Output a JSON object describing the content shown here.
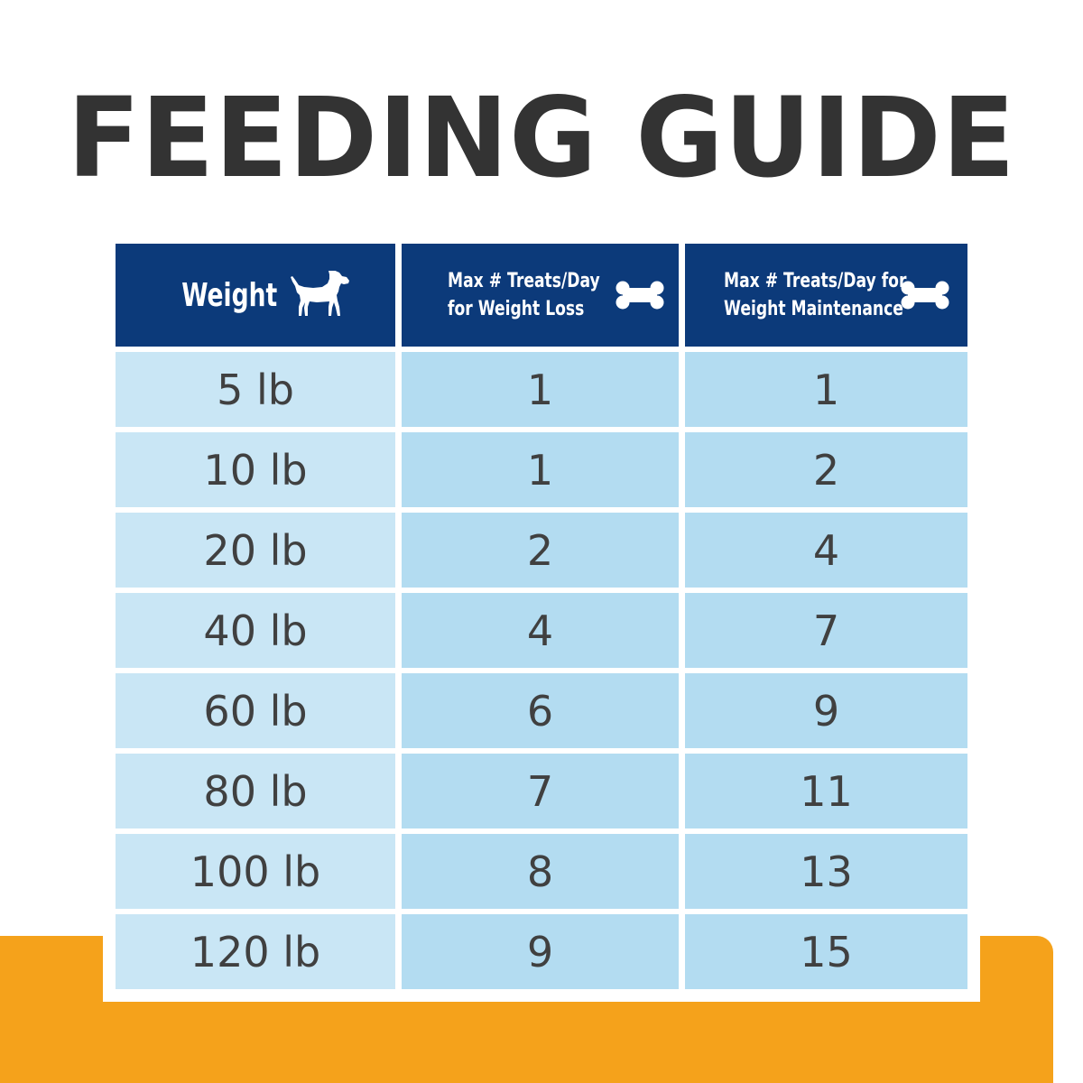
{
  "title": "FEEDING GUIDE",
  "table": {
    "headers": {
      "weight": {
        "label": "Weight",
        "icon": "dog-icon"
      },
      "weight_loss": {
        "line1": "Max # Treats/Day",
        "line2": "for Weight Loss",
        "icon": "bone-icon"
      },
      "weight_maintenance": {
        "line1": "Max # Treats/Day for",
        "line2": "Weight Maintenance",
        "icon": "bone-icon"
      }
    },
    "rows": [
      {
        "weight": "5 lb",
        "loss": "1",
        "maintenance": "1"
      },
      {
        "weight": "10 lb",
        "loss": "1",
        "maintenance": "2"
      },
      {
        "weight": "20 lb",
        "loss": "2",
        "maintenance": "4"
      },
      {
        "weight": "40 lb",
        "loss": "4",
        "maintenance": "7"
      },
      {
        "weight": "60 lb",
        "loss": "6",
        "maintenance": "9"
      },
      {
        "weight": "80 lb",
        "loss": "7",
        "maintenance": "11"
      },
      {
        "weight": "100 lb",
        "loss": "8",
        "maintenance": "13"
      },
      {
        "weight": "120 lb",
        "loss": "9",
        "maintenance": "15"
      }
    ]
  },
  "colors": {
    "header_bg": "#0c3a7a",
    "weight_col_bg": "#c9e6f5",
    "value_col_bg": "#b3dcf1",
    "title_text": "#333333",
    "accent_band": "#f5a21b"
  }
}
